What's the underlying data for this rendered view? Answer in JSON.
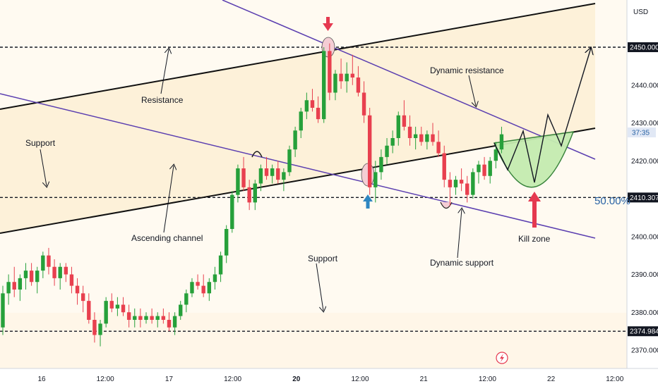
{
  "currency_label": "USD",
  "fib_label": "50.00%",
  "countdown": "37:35",
  "colors": {
    "up": "#26a03a",
    "down": "#e8404f",
    "channel_fill": "#fdf1dd",
    "channel_line": "#111111",
    "trend_line": "#5b3fb0",
    "kill_zone_fill": "#c5ecb0",
    "kill_zone_stroke": "#2e7d32",
    "arrow_red": "#e53950",
    "arrow_blue": "#2e86c1",
    "fib_blue": "#2862a5",
    "highlight_pink": "#f4cdd4"
  },
  "chart_data": {
    "type": "candlestick",
    "y_axis": {
      "min": 2365,
      "max": 2456,
      "ticks": [
        2370,
        2380,
        2390,
        2400,
        2410,
        2420,
        2430,
        2440,
        2450
      ],
      "tick_labels": [
        "2370.000",
        "2380.000",
        "2390.000",
        "2400.000",
        "2410.000",
        "2420.000",
        "2430.000",
        "2440.000",
        "2450.000"
      ]
    },
    "x_axis": {
      "labels": [
        "16",
        "12:00",
        "17",
        "12:00",
        "20",
        "12:00",
        "21",
        "12:00",
        "22",
        "12:00"
      ],
      "bold_labels": [
        "20"
      ]
    },
    "price_levels": [
      {
        "value": 2450.0,
        "label": "2450.000",
        "style": "dashed"
      },
      {
        "value": 2410.307,
        "label": "2410.307",
        "style": "dashed"
      },
      {
        "value": 2374.984,
        "label": "2374.984",
        "style": "dashed"
      }
    ],
    "current_price": 2427.5,
    "annotations": [
      "Resistance",
      "Support",
      "Ascending channel",
      "Support",
      "Dynamic resistance",
      "Dynamic support",
      "Kill zone"
    ],
    "candles": [
      [
        2376,
        2387,
        2374,
        2385
      ],
      [
        2385,
        2390,
        2382,
        2388
      ],
      [
        2388,
        2392,
        2384,
        2386
      ],
      [
        2386,
        2390,
        2383,
        2389
      ],
      [
        2389,
        2393,
        2386,
        2391
      ],
      [
        2391,
        2393,
        2387,
        2388
      ],
      [
        2388,
        2392,
        2385,
        2391
      ],
      [
        2391,
        2396,
        2389,
        2395
      ],
      [
        2395,
        2397,
        2390,
        2392
      ],
      [
        2392,
        2394,
        2387,
        2389
      ],
      [
        2389,
        2393,
        2386,
        2392
      ],
      [
        2392,
        2393,
        2388,
        2390
      ],
      [
        2390,
        2392,
        2385,
        2387
      ],
      [
        2387,
        2389,
        2382,
        2385
      ],
      [
        2385,
        2387,
        2380,
        2383
      ],
      [
        2383,
        2385,
        2377,
        2378
      ],
      [
        2378,
        2380,
        2372,
        2374
      ],
      [
        2374,
        2378,
        2371,
        2377
      ],
      [
        2377,
        2384,
        2376,
        2383
      ],
      [
        2383,
        2385,
        2380,
        2381
      ],
      [
        2381,
        2384,
        2379,
        2382
      ],
      [
        2382,
        2384,
        2379,
        2380
      ],
      [
        2380,
        2382,
        2376,
        2378
      ],
      [
        2378,
        2381,
        2376,
        2379
      ],
      [
        2379,
        2381,
        2376,
        2378
      ],
      [
        2378,
        2380,
        2377,
        2379
      ],
      [
        2379,
        2381,
        2377,
        2378
      ],
      [
        2378,
        2380,
        2376,
        2379
      ],
      [
        2379,
        2381,
        2377,
        2378
      ],
      [
        2378,
        2380,
        2375,
        2376
      ],
      [
        2376,
        2380,
        2374,
        2379
      ],
      [
        2379,
        2383,
        2378,
        2382
      ],
      [
        2382,
        2386,
        2380,
        2385
      ],
      [
        2385,
        2389,
        2384,
        2388
      ],
      [
        2388,
        2390,
        2386,
        2387
      ],
      [
        2387,
        2390,
        2384,
        2385
      ],
      [
        2385,
        2389,
        2383,
        2388
      ],
      [
        2388,
        2392,
        2386,
        2390
      ],
      [
        2390,
        2396,
        2388,
        2395
      ],
      [
        2395,
        2403,
        2393,
        2402
      ],
      [
        2402,
        2412,
        2401,
        2411
      ],
      [
        2411,
        2419,
        2409,
        2418
      ],
      [
        2418,
        2421,
        2412,
        2413
      ],
      [
        2413,
        2415,
        2407,
        2409
      ],
      [
        2409,
        2415,
        2407,
        2414
      ],
      [
        2414,
        2419,
        2412,
        2418
      ],
      [
        2418,
        2421,
        2415,
        2416
      ],
      [
        2416,
        2419,
        2414,
        2418
      ],
      [
        2418,
        2420,
        2414,
        2415
      ],
      [
        2415,
        2418,
        2412,
        2417
      ],
      [
        2417,
        2424,
        2416,
        2423
      ],
      [
        2423,
        2429,
        2421,
        2428
      ],
      [
        2428,
        2434,
        2426,
        2433
      ],
      [
        2433,
        2438,
        2431,
        2436
      ],
      [
        2436,
        2439,
        2433,
        2434
      ],
      [
        2434,
        2437,
        2430,
        2431
      ],
      [
        2431,
        2450,
        2430,
        2449
      ],
      [
        2449,
        2451,
        2436,
        2438
      ],
      [
        2438,
        2444,
        2436,
        2443
      ],
      [
        2443,
        2447,
        2439,
        2441
      ],
      [
        2441,
        2446,
        2438,
        2443
      ],
      [
        2443,
        2448,
        2440,
        2442
      ],
      [
        2442,
        2445,
        2437,
        2438
      ],
      [
        2438,
        2441,
        2430,
        2432
      ],
      [
        2432,
        2434,
        2411,
        2413
      ],
      [
        2413,
        2420,
        2409,
        2417
      ],
      [
        2417,
        2423,
        2415,
        2421
      ],
      [
        2421,
        2426,
        2419,
        2424
      ],
      [
        2424,
        2428,
        2422,
        2426
      ],
      [
        2426,
        2433,
        2424,
        2432
      ],
      [
        2432,
        2436,
        2428,
        2429
      ],
      [
        2429,
        2432,
        2424,
        2426
      ],
      [
        2426,
        2429,
        2423,
        2427
      ],
      [
        2427,
        2429,
        2424,
        2425
      ],
      [
        2425,
        2428,
        2423,
        2427
      ],
      [
        2427,
        2430,
        2424,
        2425
      ],
      [
        2425,
        2428,
        2421,
        2422
      ],
      [
        2422,
        2424,
        2413,
        2415
      ],
      [
        2415,
        2417,
        2408,
        2413
      ],
      [
        2413,
        2416,
        2411,
        2415
      ],
      [
        2415,
        2418,
        2412,
        2414
      ],
      [
        2414,
        2416,
        2409,
        2411
      ],
      [
        2411,
        2418,
        2410,
        2417
      ],
      [
        2417,
        2420,
        2414,
        2419
      ],
      [
        2419,
        2421,
        2415,
        2416
      ],
      [
        2416,
        2421,
        2414,
        2420
      ],
      [
        2420,
        2425,
        2418,
        2423
      ],
      [
        2423,
        2429,
        2422,
        2427
      ]
    ]
  }
}
